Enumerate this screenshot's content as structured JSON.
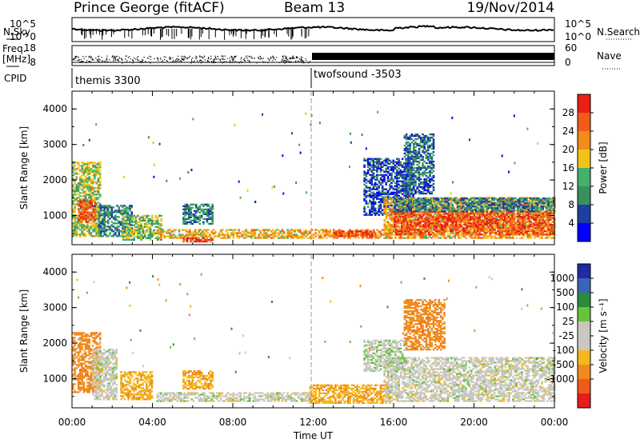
{
  "header": {
    "station": "Prince George (fitACF)",
    "beam": "Beam 13",
    "date": "19/Nov/2014"
  },
  "top_panels": {
    "nsky_label": "N.Sky",
    "nsearch_label": "N.Search",
    "noise_ticks": [
      "10^5",
      "10^0"
    ],
    "freq_label": "Freq.",
    "freq_unit": "[MHz]",
    "freq_ticks": [
      "18",
      "8"
    ],
    "nave_label": "Nave",
    "nave_ticks": [
      "60",
      "0"
    ],
    "cpid_label": "CPID",
    "cpid_segments": [
      {
        "name": "themis 3300",
        "start_hour": 0,
        "end_hour": 12
      },
      {
        "name": "twofsound -3503",
        "start_hour": 12,
        "end_hour": 24
      }
    ]
  },
  "colors": {
    "power_scale": [
      "#0000ff",
      "#1e3ea0",
      "#3a8f5f",
      "#44b06a",
      "#f2c318",
      "#f08c1a",
      "#f25b1a",
      "#e82015"
    ],
    "velocity_scale": [
      "#e81c1c",
      "#f25a1a",
      "#f08a20",
      "#f2b91e",
      "#c8c8c0",
      "#c8c8c0",
      "#66c33a",
      "#2d8a3c",
      "#3a64b8",
      "#1e2ca0"
    ]
  },
  "chart_data": [
    {
      "type": "heatmap",
      "title": "Power",
      "xlabel": "Time UT",
      "ylabel": "Slant Range [km]",
      "x_range_hours": [
        0,
        24
      ],
      "xticks": [
        "00:00",
        "04:00",
        "08:00",
        "12:00",
        "16:00",
        "20:00",
        "00:00"
      ],
      "ylim": [
        180,
        4500
      ],
      "yticks": [
        "1000",
        "2000",
        "3000",
        "4000"
      ],
      "colorbar_label": "Power [dB]",
      "colorbar_ticks": [
        "4",
        "8",
        "12",
        "16",
        "20",
        "24",
        "28"
      ],
      "colorbar_range": [
        0,
        32
      ],
      "regions": [
        {
          "t0": 0.0,
          "t1": 1.4,
          "r0": 400,
          "r1": 2500,
          "level": 16
        },
        {
          "t0": 0.3,
          "t1": 1.2,
          "r0": 800,
          "r1": 1400,
          "level": 26
        },
        {
          "t0": 1.3,
          "t1": 3.0,
          "r0": 400,
          "r1": 1300,
          "level": 10
        },
        {
          "t0": 2.5,
          "t1": 4.4,
          "r0": 300,
          "r1": 1000,
          "level": 15
        },
        {
          "t0": 4.2,
          "t1": 11.8,
          "r0": 350,
          "r1": 600,
          "level": 20
        },
        {
          "t0": 5.5,
          "t1": 7.0,
          "r0": 250,
          "r1": 350,
          "level": 28
        },
        {
          "t0": 5.5,
          "t1": 7.0,
          "r0": 750,
          "r1": 1300,
          "level": 10
        },
        {
          "t0": 11.8,
          "t1": 15.8,
          "r0": 350,
          "r1": 600,
          "level": 22
        },
        {
          "t0": 13.0,
          "t1": 15.0,
          "r0": 400,
          "r1": 560,
          "level": 27
        },
        {
          "t0": 14.5,
          "t1": 17.0,
          "r0": 1000,
          "r1": 2600,
          "level": 6
        },
        {
          "t0": 15.5,
          "t1": 24.0,
          "r0": 350,
          "r1": 1500,
          "level": 20
        },
        {
          "t0": 16.0,
          "t1": 24.0,
          "r0": 450,
          "r1": 1100,
          "level": 27
        },
        {
          "t0": 16.0,
          "t1": 24.0,
          "r0": 1100,
          "r1": 1500,
          "level": 9
        },
        {
          "t0": 16.5,
          "t1": 18.0,
          "r0": 1600,
          "r1": 3300,
          "level": 8
        }
      ]
    },
    {
      "type": "heatmap",
      "title": "Velocity",
      "xlabel": "Time UT",
      "ylabel": "Slant Range [km]",
      "x_range_hours": [
        0,
        24
      ],
      "xticks": [
        "00:00",
        "04:00",
        "08:00",
        "12:00",
        "16:00",
        "20:00",
        "00:00"
      ],
      "ylim": [
        180,
        4500
      ],
      "yticks": [
        "1000",
        "2000",
        "3000",
        "4000"
      ],
      "colorbar_label": "Velocity [m s⁻¹]",
      "colorbar_ticks": [
        "1000",
        "500",
        "100",
        "25",
        "-25",
        "-100",
        "-500",
        "-1000"
      ],
      "regions": [
        {
          "t0": 0.0,
          "t1": 1.4,
          "r0": 600,
          "r1": 2300,
          "vel": -300
        },
        {
          "t0": 1.0,
          "t1": 2.2,
          "r0": 400,
          "r1": 1800,
          "vel": 0
        },
        {
          "t0": 2.4,
          "t1": 4.0,
          "r0": 400,
          "r1": 1200,
          "vel": -80
        },
        {
          "t0": 4.2,
          "t1": 11.8,
          "r0": 350,
          "r1": 600,
          "vel": 0
        },
        {
          "t0": 5.5,
          "t1": 7.0,
          "r0": 700,
          "r1": 1200,
          "vel": -100
        },
        {
          "t0": 11.8,
          "t1": 15.8,
          "r0": 300,
          "r1": 800,
          "vel": -80
        },
        {
          "t0": 15.5,
          "t1": 24.0,
          "r0": 350,
          "r1": 1600,
          "vel": 0
        },
        {
          "t0": 16.5,
          "t1": 18.5,
          "r0": 1800,
          "r1": 3200,
          "vel": -300
        },
        {
          "t0": 14.5,
          "t1": 16.5,
          "r0": 1200,
          "r1": 2100,
          "vel": 10
        }
      ]
    }
  ]
}
